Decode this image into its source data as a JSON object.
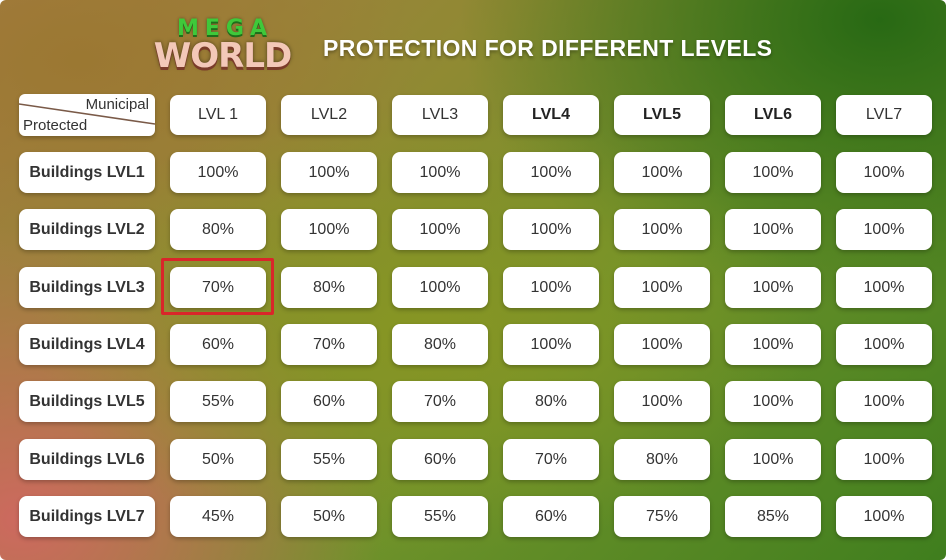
{
  "logo": {
    "top": "MEGA",
    "bottom": "WORLD"
  },
  "title": "PROTECTION FOR DIFFERENT LEVELS",
  "corner": {
    "column_axis": "Municipal",
    "row_axis": "Protected"
  },
  "columns": [
    "LVL 1",
    "LVL2",
    "LVL3",
    "LVL4",
    "LVL5",
    "LVL6",
    "LVL7"
  ],
  "rows": [
    {
      "label": "Buildings LVL1",
      "values": [
        "100%",
        "100%",
        "100%",
        "100%",
        "100%",
        "100%",
        "100%"
      ]
    },
    {
      "label": "Buildings LVL2",
      "values": [
        "80%",
        "100%",
        "100%",
        "100%",
        "100%",
        "100%",
        "100%"
      ]
    },
    {
      "label": "Buildings LVL3",
      "values": [
        "70%",
        "80%",
        "100%",
        "100%",
        "100%",
        "100%",
        "100%"
      ]
    },
    {
      "label": "Buildings LVL4",
      "values": [
        "60%",
        "70%",
        "80%",
        "100%",
        "100%",
        "100%",
        "100%"
      ]
    },
    {
      "label": "Buildings LVL5",
      "values": [
        "55%",
        "60%",
        "70%",
        "80%",
        "100%",
        "100%",
        "100%"
      ]
    },
    {
      "label": "Buildings LVL6",
      "values": [
        "50%",
        "55%",
        "60%",
        "70%",
        "80%",
        "100%",
        "100%"
      ]
    },
    {
      "label": "Buildings LVL7",
      "values": [
        "45%",
        "50%",
        "55%",
        "60%",
        "75%",
        "85%",
        "100%"
      ]
    }
  ],
  "highlighted_cell": {
    "row": "Buildings LVL3",
    "column": "LVL 1",
    "color": "#d9262a"
  }
}
